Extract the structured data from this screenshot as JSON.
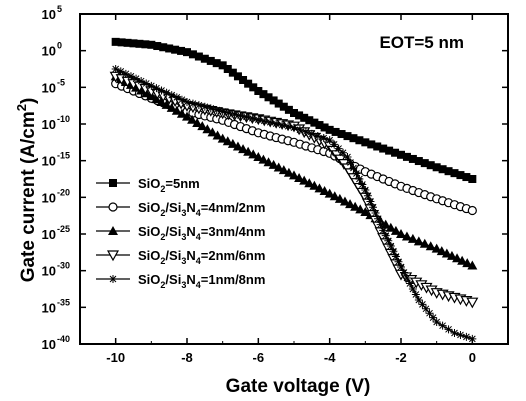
{
  "chart_data": {
    "type": "scatter",
    "annotation": "EOT=5 nm",
    "xlabel": "Gate voltage (V)",
    "ylabel_parts": [
      "Gate current (A/cm",
      "2",
      ")"
    ],
    "x_scale": "linear",
    "y_scale": "log",
    "xlim": [
      -11,
      1
    ],
    "ylim_exponent": [
      -40,
      5
    ],
    "x_ticks": [
      -10,
      -8,
      -6,
      -4,
      -2,
      0
    ],
    "x_tick_labels": [
      "-10",
      "-8",
      "-6",
      "-4",
      "-2",
      "0"
    ],
    "y_tick_exponents": [
      5,
      0,
      -5,
      -10,
      -15,
      -20,
      -25,
      -30,
      -35,
      -40
    ],
    "y_tick_base": "10",
    "y_tick_exponent_labels": [
      "5",
      "0",
      "-5",
      "-10",
      "-15",
      "-20",
      "-25",
      "-30",
      "-35",
      "-40"
    ],
    "grid": false,
    "legend_position": "lower-left",
    "series": [
      {
        "label_parts": [
          [
            "SiO",
            ""
          ],
          [
            "2",
            "sub"
          ],
          [
            "=5nm",
            ""
          ]
        ],
        "marker": "square-filled",
        "x": [
          -10,
          -9,
          -8,
          -7,
          -6,
          -5,
          -4,
          -3,
          -2,
          -1,
          0
        ],
        "y_log10": [
          1.2,
          0.8,
          -0.2,
          -2,
          -5.5,
          -8.5,
          -10.8,
          -12.5,
          -14.2,
          -15.9,
          -17.5
        ]
      },
      {
        "label_parts": [
          [
            "SiO",
            ""
          ],
          [
            "2",
            "sub"
          ],
          [
            "/Si",
            ""
          ],
          [
            "3",
            "sub"
          ],
          [
            "N",
            ""
          ],
          [
            "4",
            "sub"
          ],
          [
            "=4nm/2nm",
            ""
          ]
        ],
        "marker": "circle-open",
        "x": [
          -10,
          -9,
          -8,
          -7,
          -6,
          -5,
          -4,
          -3,
          -2,
          -1,
          0
        ],
        "y_log10": [
          -4.5,
          -6.5,
          -8.3,
          -9.5,
          -11.2,
          -12.5,
          -14,
          -16.5,
          -18.5,
          -20.2,
          -21.8
        ]
      },
      {
        "label_parts": [
          [
            "SiO",
            ""
          ],
          [
            "2",
            "sub"
          ],
          [
            "/Si",
            ""
          ],
          [
            "3",
            "sub"
          ],
          [
            "N",
            ""
          ],
          [
            "4",
            "sub"
          ],
          [
            "=3nm/4nm",
            ""
          ]
        ],
        "marker": "triangle-up-filled",
        "x": [
          -10,
          -9,
          -8,
          -7,
          -6,
          -5,
          -4,
          -3,
          -2,
          -1,
          0
        ],
        "y_log10": [
          -3.5,
          -6.2,
          -9,
          -12,
          -14.5,
          -17,
          -19.5,
          -22,
          -25,
          -27,
          -29.3
        ]
      },
      {
        "label_parts": [
          [
            "SiO",
            ""
          ],
          [
            "2",
            "sub"
          ],
          [
            "/Si",
            ""
          ],
          [
            "3",
            "sub"
          ],
          [
            "N",
            ""
          ],
          [
            "4",
            "sub"
          ],
          [
            "=2nm/6nm",
            ""
          ]
        ],
        "marker": "triangle-down-open",
        "x": [
          -10,
          -9,
          -8,
          -7,
          -6,
          -5,
          -4,
          -3.5,
          -3,
          -2.5,
          -2,
          -1,
          0
        ],
        "y_log10": [
          -3.5,
          -5.5,
          -7.5,
          -8.5,
          -9.3,
          -10.3,
          -13,
          -16,
          -20,
          -25.5,
          -30.5,
          -33,
          -34.3
        ]
      },
      {
        "label_parts": [
          [
            "SiO",
            ""
          ],
          [
            "2",
            "sub"
          ],
          [
            "/Si",
            ""
          ],
          [
            "3",
            "sub"
          ],
          [
            "N",
            ""
          ],
          [
            "4",
            "sub"
          ],
          [
            "=1nm/8nm",
            ""
          ]
        ],
        "marker": "star",
        "x": [
          -10,
          -9,
          -8,
          -7,
          -6,
          -5,
          -4,
          -3.5,
          -3,
          -2.5,
          -2,
          -1.5,
          -1,
          -0.5,
          0
        ],
        "y_log10": [
          -2.5,
          -4.8,
          -7,
          -8.3,
          -9.4,
          -10.5,
          -12.2,
          -14.5,
          -19,
          -24.5,
          -29.5,
          -34,
          -37,
          -38.5,
          -39.3
        ]
      }
    ]
  }
}
